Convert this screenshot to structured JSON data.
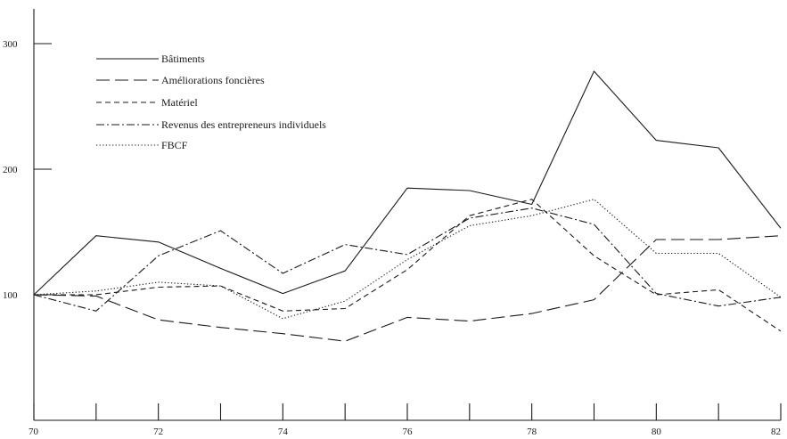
{
  "chart_data": {
    "type": "line",
    "title": "",
    "xlabel": "",
    "ylabel": "",
    "x": [
      70,
      71,
      72,
      73,
      74,
      75,
      76,
      77,
      78,
      79,
      80,
      81,
      82
    ],
    "xlim": [
      70,
      82
    ],
    "ylim": [
      0,
      320
    ],
    "x_ticks": [
      70,
      72,
      74,
      76,
      78,
      80,
      82
    ],
    "x_tick_labels": [
      "70",
      "72",
      "74",
      "76",
      "78",
      "80",
      "82"
    ],
    "y_ticks": [
      100,
      200,
      300
    ],
    "y_tick_labels": [
      "100",
      "200",
      "300"
    ],
    "grid": false,
    "legend_position": "top-left",
    "series": [
      {
        "name": "Bâtiments",
        "dash": "solid",
        "values": [
          100,
          147,
          142,
          121,
          101,
          119,
          185,
          183,
          172,
          278,
          223,
          217,
          153
        ]
      },
      {
        "name": "Améliorations foncières",
        "dash": "longdash",
        "values": [
          100,
          99,
          80,
          74,
          69,
          63,
          82,
          79,
          85,
          96,
          144,
          144,
          147
        ]
      },
      {
        "name": "Matériel",
        "dash": "dashed",
        "values": [
          100,
          100,
          106,
          107,
          87,
          89,
          120,
          163,
          176,
          131,
          100,
          104,
          71
        ]
      },
      {
        "name": "Revenus des entrepreneurs individuels",
        "dash": "dashdot",
        "values": [
          100,
          87,
          131,
          151,
          117,
          140,
          132,
          161,
          169,
          156,
          101,
          91,
          98
        ]
      },
      {
        "name": "FBCF",
        "dash": "dotted",
        "values": [
          100,
          103,
          110,
          107,
          81,
          95,
          128,
          155,
          163,
          176,
          133,
          133,
          98
        ]
      }
    ]
  }
}
